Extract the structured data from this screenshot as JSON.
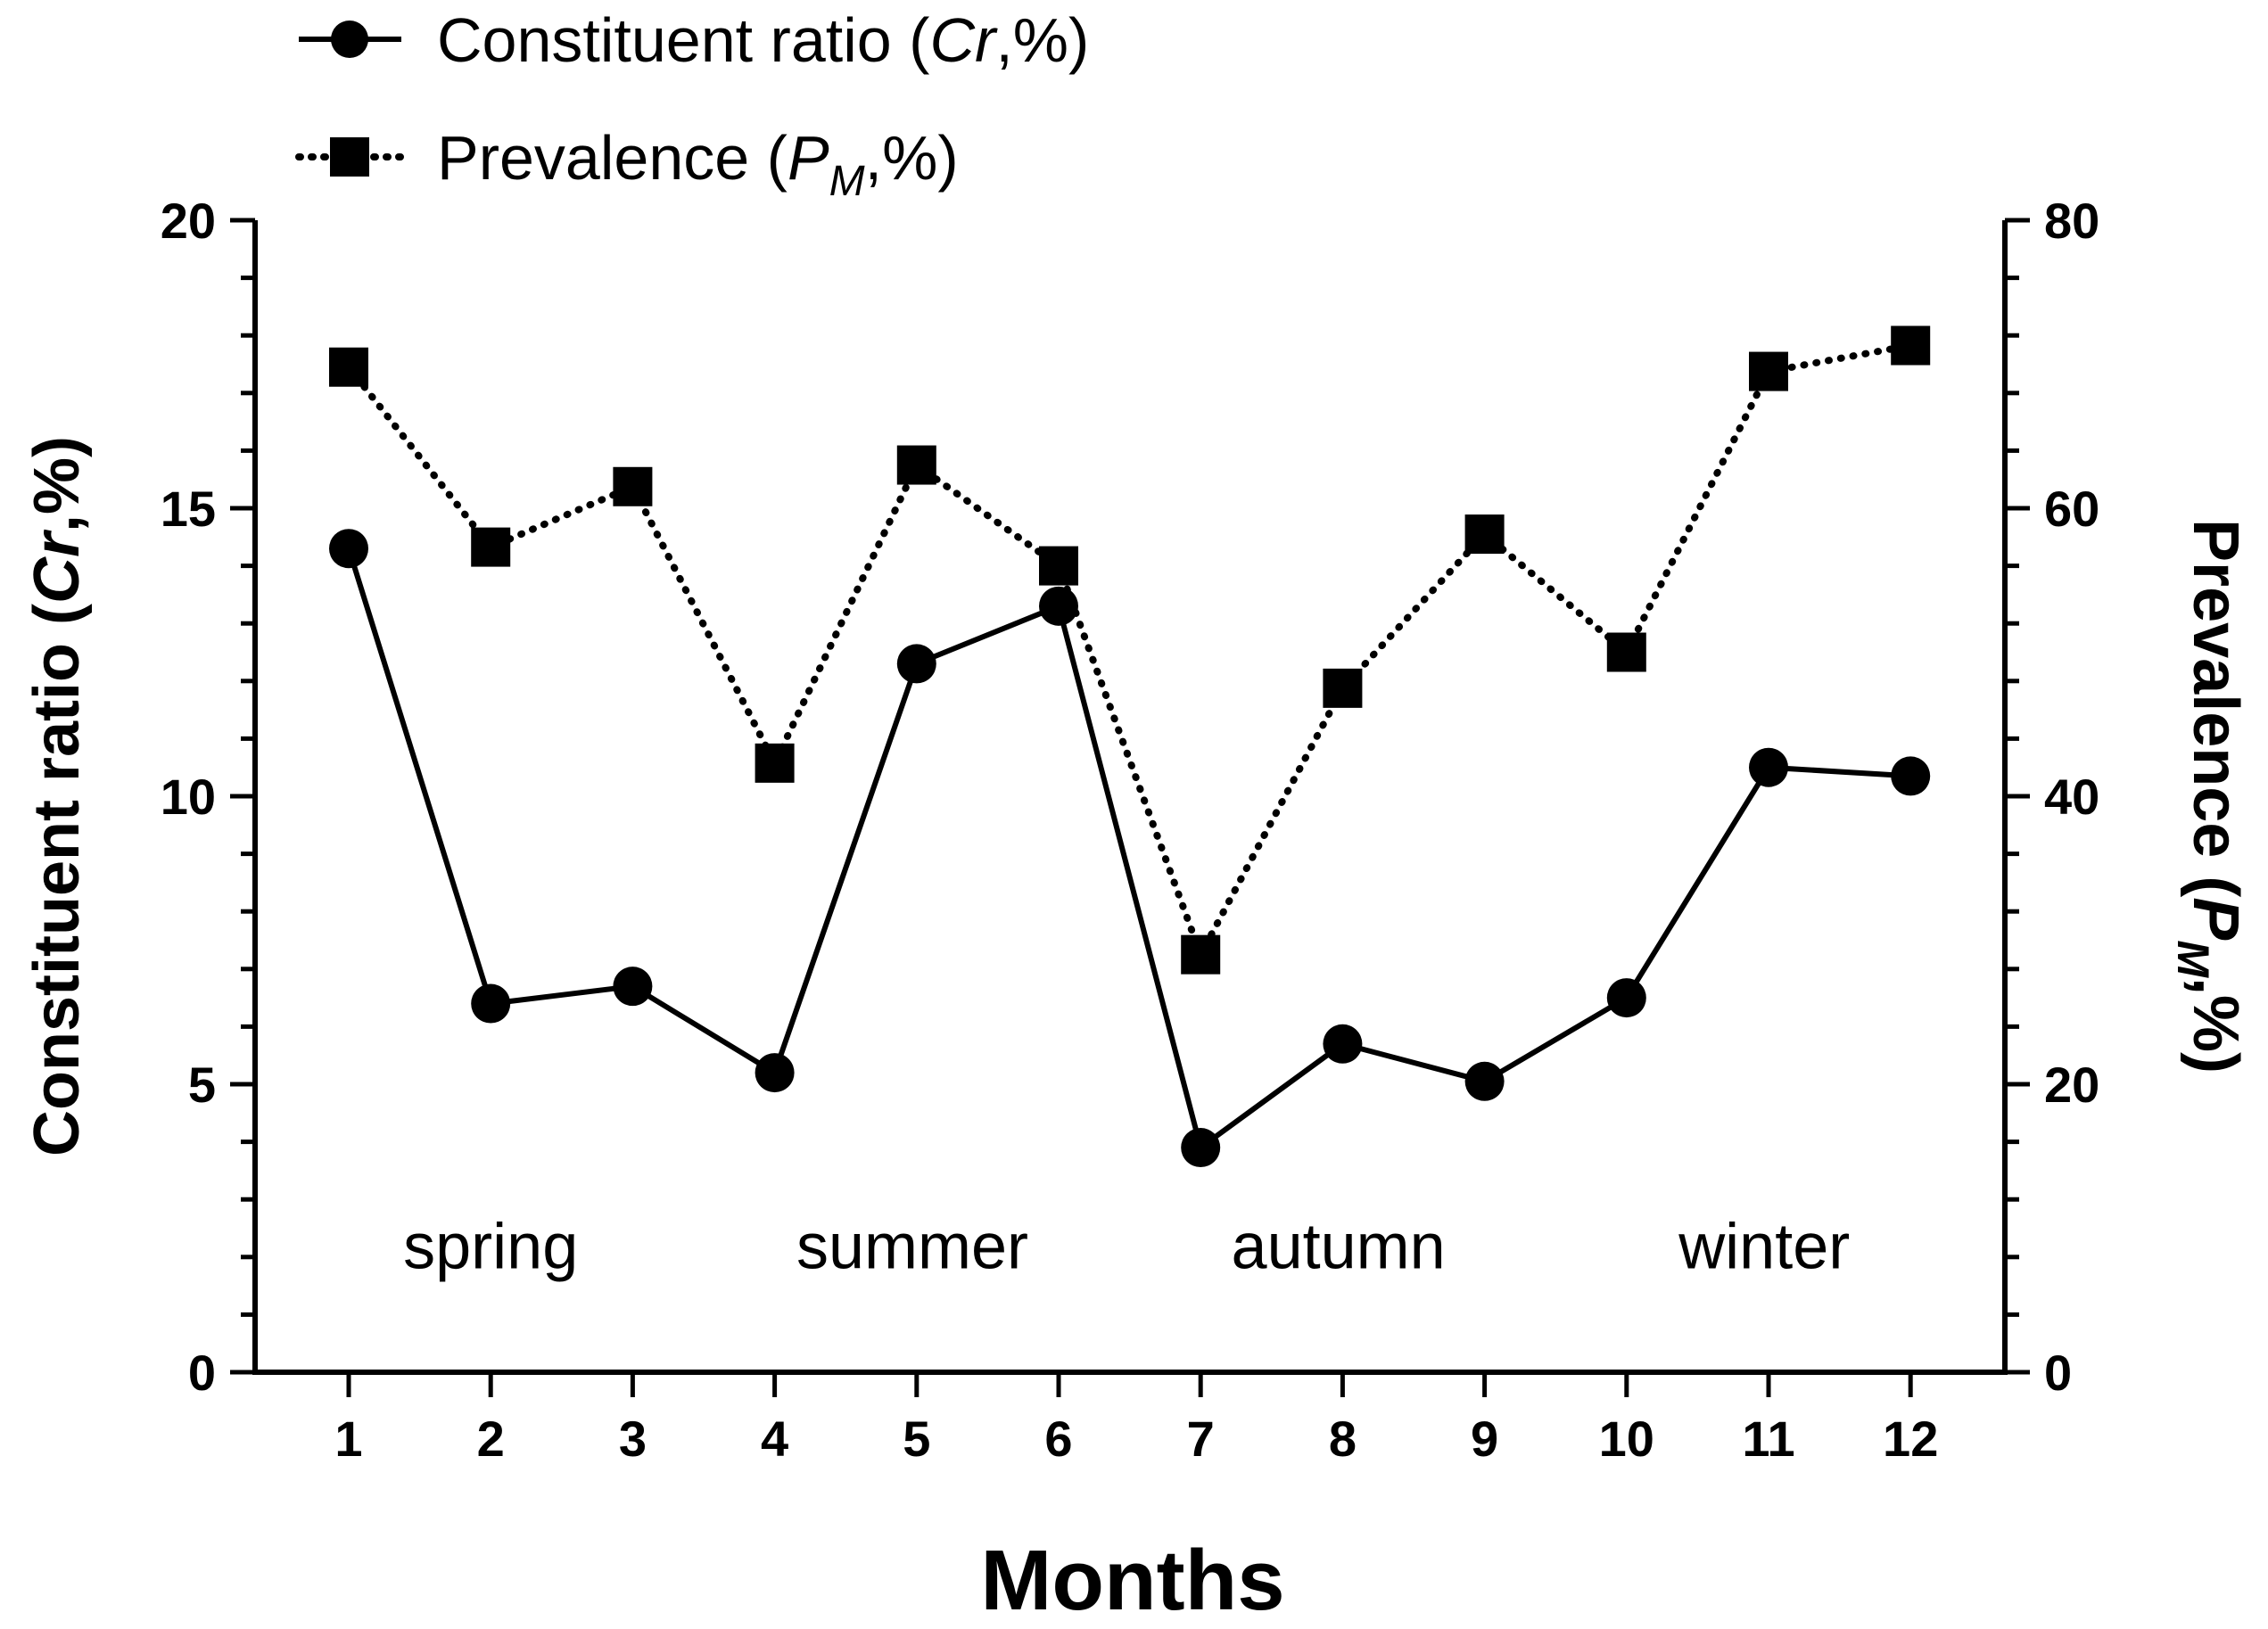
{
  "chart_data": {
    "type": "line",
    "x": [
      1,
      2,
      3,
      4,
      5,
      6,
      7,
      8,
      9,
      10,
      11,
      12
    ],
    "xlabel": "Months",
    "ylabel": "Constituent ratio (Cr,%)",
    "ylabel_parts": [
      "Constituent ratio (",
      "Cr",
      ",%)"
    ],
    "ylim": [
      0,
      20
    ],
    "yticks": [
      0,
      5,
      10,
      15,
      20
    ],
    "y2label": "Prevalence (PM,%)",
    "y2label_parts": [
      "Prevalence (",
      "P",
      "M",
      ",%)"
    ],
    "y2lim": [
      0,
      80
    ],
    "y2ticks": [
      0,
      20,
      40,
      60,
      80
    ],
    "grid": false,
    "legend_position": "top-left",
    "series": [
      {
        "name": "Constituent ratio (Cr,%)",
        "legend_parts": [
          "Constituent ratio (",
          "Cr",
          ",%)"
        ],
        "axis": "left",
        "marker": "circle",
        "line_style": "solid",
        "values": [
          14.3,
          6.4,
          6.7,
          5.2,
          12.3,
          13.3,
          3.9,
          5.7,
          5.05,
          6.5,
          10.5,
          10.35
        ]
      },
      {
        "name": "Prevalence (PM,%)",
        "legend_parts": [
          "Prevalence (",
          "P",
          "M",
          ",%)"
        ],
        "axis": "right",
        "marker": "square",
        "line_style": "dotted",
        "values": [
          69.8,
          57.3,
          61.5,
          42.3,
          63.0,
          56.0,
          29.0,
          47.5,
          58.2,
          50.0,
          69.5,
          71.3
        ]
      }
    ],
    "annotations": [
      {
        "text": "spring",
        "x": 2.0
      },
      {
        "text": "summer",
        "x": 4.97
      },
      {
        "text": "autumn",
        "x": 7.97
      },
      {
        "text": "winter",
        "x": 10.97
      }
    ],
    "annotation_y": 1.8,
    "colors": {
      "line": "#000000",
      "background": "#ffffff"
    }
  }
}
